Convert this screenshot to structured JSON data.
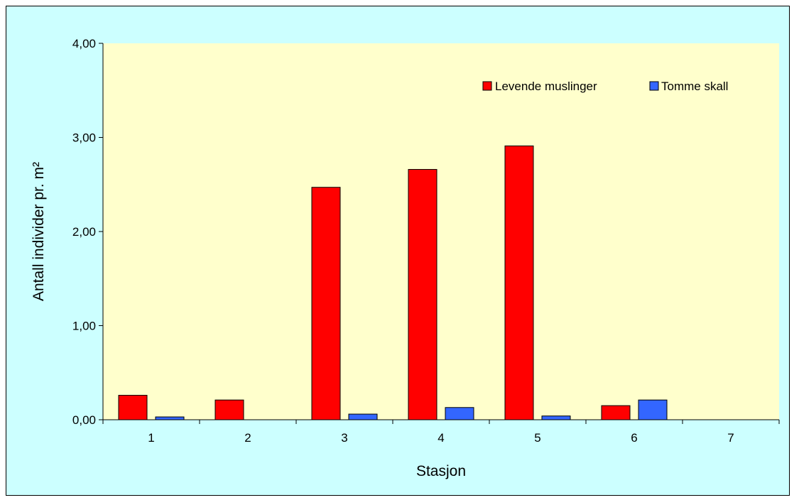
{
  "chart_data": {
    "type": "bar",
    "xlabel": "Stasjon",
    "ylabel": "Antall individer pr. m²",
    "categories": [
      "1",
      "2",
      "3",
      "4",
      "5",
      "6",
      "7"
    ],
    "series": [
      {
        "name": "Levende muslinger",
        "values": [
          0.26,
          0.21,
          2.47,
          2.66,
          2.91,
          0.15,
          0
        ],
        "color": "#ff0000"
      },
      {
        "name": "Tomme skall",
        "values": [
          0.03,
          0,
          0.06,
          0.13,
          0.04,
          0.21,
          0
        ],
        "color": "#3366ff"
      }
    ],
    "ylim": [
      0,
      4
    ],
    "yticks": [
      "0,00",
      "1,00",
      "2,00",
      "3,00",
      "4,00"
    ],
    "yticks_values": [
      0,
      1,
      2,
      3,
      4
    ],
    "legend_position": "top-right",
    "grid": false,
    "plot_background": "#ffffcc",
    "chart_background": "#ccffff"
  }
}
